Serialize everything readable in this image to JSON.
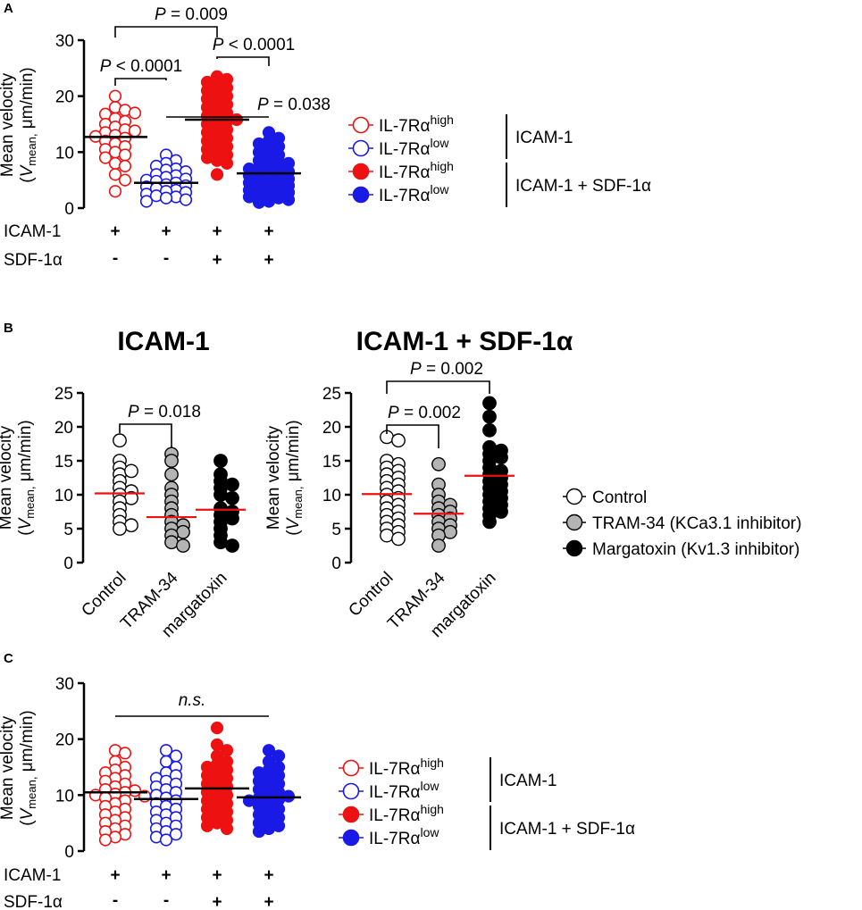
{
  "colors": {
    "red": "#ee1111",
    "blue": "#1a1ae6",
    "grey": "#b4b4b4",
    "black": "#000000",
    "mean_line_red": "#ee1111",
    "mean_line_black": "#000000"
  },
  "labels": {
    "ylabel_line1": "Mean velocity",
    "ylabel_v": "V",
    "ylabel_sub": "mean,",
    "ylabel_unit": " μm/min)",
    "ylabel_open": "("
  },
  "chart_data": [
    {
      "panel": "A",
      "type": "scatter",
      "ylim": [
        0,
        30
      ],
      "yticks": [
        "0",
        "10",
        "20",
        "30"
      ],
      "groups": [
        {
          "name": "IL-7Rα high, ICAM-1",
          "fill": "open",
          "color": "red",
          "mean": 12.7,
          "values": [
            20,
            18,
            17.5,
            16.8,
            17,
            16,
            15.5,
            15,
            14.5,
            14,
            13.8,
            13.5,
            13,
            12.8,
            12.5,
            12,
            11.5,
            11,
            10.5,
            10,
            9.5,
            9,
            8,
            7.5,
            6,
            5,
            3
          ]
        },
        {
          "name": "IL-7Rα low, ICAM-1",
          "fill": "open",
          "color": "blue",
          "mean": 4.5,
          "values": [
            9.5,
            8.5,
            8,
            7.5,
            7,
            6.8,
            6.5,
            6,
            5.8,
            5.5,
            5.2,
            5,
            4.8,
            4.5,
            4.2,
            4,
            3.8,
            3.5,
            3.2,
            3,
            2.8,
            2.5,
            2.2,
            2,
            1.8,
            1.5,
            1.2
          ]
        },
        {
          "name": "IL-7Rα high, ICAM-1 + SDF-1α",
          "fill": "filled",
          "color": "red",
          "mean": 15.8,
          "values": [
            23.5,
            23,
            22.5,
            22,
            21.5,
            21,
            20.5,
            20,
            19.5,
            19,
            18.5,
            18,
            17.5,
            17,
            16.5,
            16,
            15.8,
            15.5,
            15,
            14.5,
            14,
            13.5,
            13,
            12.5,
            12,
            11.5,
            11,
            10.5,
            10,
            9.5,
            9,
            8.5,
            8,
            6
          ]
        },
        {
          "name": "IL-7Rα low, ICAM-1 + SDF-1α",
          "fill": "filled",
          "color": "blue",
          "mean": 6.2,
          "values": [
            13.5,
            12.5,
            12,
            11.5,
            11,
            10.5,
            10,
            9.5,
            9,
            8.5,
            8.2,
            8,
            7.5,
            7.2,
            7,
            6.8,
            6.5,
            6.2,
            6,
            5.8,
            5.5,
            5.2,
            5,
            4.8,
            4.5,
            4.2,
            4,
            3.8,
            3.5,
            3.2,
            3,
            2.8,
            2.5,
            2.2,
            2,
            1.8,
            1.5,
            1.2,
            1
          ]
        }
      ],
      "brackets": [
        {
          "from": 0,
          "to": 2,
          "label_p": "P",
          "label_rest": " = 0.009",
          "left_down": 12,
          "right_down": 12
        },
        {
          "from": 0,
          "to": 1,
          "label_p": "P",
          "label_rest": " < 0.0001",
          "left_down": 6,
          "right_down": 2
        },
        {
          "from": 2,
          "to": 3,
          "label_p": "P",
          "label_rest": " < 0.0001",
          "left_down": 2,
          "right_down": 2
        },
        {
          "from": 1,
          "to": 3,
          "label_p": "P",
          "label_rest": " = 0.038",
          "left_down": 0,
          "right_down": 0
        }
      ],
      "conditions": {
        "rows": [
          "ICAM-1",
          "SDF-1α"
        ],
        "values": [
          [
            "+",
            "+",
            "+",
            "+"
          ],
          [
            "-",
            "-",
            "+",
            "+"
          ]
        ]
      },
      "legend": {
        "items": [
          {
            "prefix": "IL-7Rα",
            "sup": "high",
            "fill": "open",
            "color": "red"
          },
          {
            "prefix": "IL-7Rα",
            "sup": "low",
            "fill": "open",
            "color": "blue"
          },
          {
            "prefix": "IL-7Rα",
            "sup": "high",
            "fill": "filled",
            "color": "red"
          },
          {
            "prefix": "IL-7Rα",
            "sup": "low",
            "fill": "filled",
            "color": "blue"
          }
        ],
        "groups": [
          "ICAM-1",
          "ICAM-1 + SDF-1α"
        ]
      }
    },
    {
      "panel": "B",
      "subpanels": [
        {
          "title": "ICAM-1",
          "type": "scatter",
          "ylim": [
            0,
            25
          ],
          "yticks": [
            "0",
            "5",
            "10",
            "15",
            "20",
            "25"
          ],
          "categories": [
            "Control",
            "TRAM-34",
            "margatoxin"
          ],
          "groups": [
            {
              "name": "Control",
              "fill": "white",
              "mean": 10.2,
              "values": [
                18,
                15,
                14,
                13,
                13.5,
                12,
                11,
                10.5,
                10,
                9.5,
                9,
                8,
                7,
                6,
                5.5,
                5
              ]
            },
            {
              "name": "TRAM-34",
              "fill": "grey",
              "mean": 6.7,
              "values": [
                16,
                15,
                13,
                11,
                10,
                9,
                8,
                7,
                6,
                5.5,
                5,
                4.5,
                4,
                3,
                2.5
              ]
            },
            {
              "name": "margatoxin",
              "fill": "black",
              "mean": 7.8,
              "values": [
                15,
                13,
                12,
                11.5,
                11,
                10,
                9.5,
                8,
                7.5,
                7,
                6.5,
                6,
                5,
                4,
                3,
                2.5
              ]
            }
          ],
          "brackets": [
            {
              "from": 0,
              "to": 1,
              "label_p": "P",
              "label_rest": " = 0.018"
            }
          ]
        },
        {
          "title": "ICAM-1 + SDF-1α",
          "type": "scatter",
          "ylim": [
            0,
            25
          ],
          "yticks": [
            "0",
            "5",
            "10",
            "15",
            "20",
            "25"
          ],
          "categories": [
            "Control",
            "TRAM-34",
            "margatoxin"
          ],
          "groups": [
            {
              "name": "Control",
              "fill": "white",
              "mean": 10.1,
              "values": [
                18.5,
                18,
                15,
                14.5,
                14,
                13.5,
                13,
                12.5,
                12,
                11.5,
                11,
                10.5,
                10,
                9.5,
                9,
                8.5,
                8,
                7.5,
                7,
                6.5,
                6,
                5.5,
                5,
                4.5,
                4,
                3.5
              ]
            },
            {
              "name": "TRAM-34",
              "fill": "grey",
              "mean": 7.2,
              "values": [
                14.5,
                11.5,
                10,
                9,
                8.5,
                8,
                7.5,
                7,
                6.5,
                6,
                5.5,
                5,
                4.5,
                4,
                2.5
              ]
            },
            {
              "name": "margatoxin",
              "fill": "black",
              "mean": 12.8,
              "values": [
                23.5,
                21.5,
                19.5,
                17,
                16.5,
                16,
                15.5,
                15,
                14,
                13.5,
                13,
                12.5,
                12,
                11.5,
                11,
                10.5,
                10,
                9.5,
                9,
                8.5,
                8,
                7.5,
                7,
                6
              ]
            }
          ],
          "brackets": [
            {
              "from": 0,
              "to": 2,
              "label_p": "P",
              "label_rest": " = 0.002"
            },
            {
              "from": 0,
              "to": 1,
              "label_p": "P",
              "label_rest": " = 0.002"
            }
          ]
        }
      ],
      "legend": {
        "items": [
          {
            "label": "Control",
            "fill": "white"
          },
          {
            "label": "TRAM-34 (KCa3.1 inhibitor)",
            "fill": "grey"
          },
          {
            "label": "Margatoxin (Kv1.3 inhibitor)",
            "fill": "black"
          }
        ]
      }
    },
    {
      "panel": "C",
      "type": "scatter",
      "ylim": [
        0,
        30
      ],
      "yticks": [
        "0",
        "10",
        "20",
        "30"
      ],
      "groups": [
        {
          "name": "IL-7Rα high, ICAM-1",
          "fill": "open",
          "color": "red",
          "mean": 10.5,
          "values": [
            18,
            17.5,
            16,
            15,
            14.5,
            14,
            13.5,
            13,
            12.5,
            12,
            11.5,
            11,
            10.8,
            10.5,
            10.2,
            10,
            9.8,
            9.5,
            9,
            8.5,
            8,
            7.5,
            7,
            6.5,
            6,
            5.5,
            5,
            4.5,
            4,
            3.5,
            3,
            2.5,
            2
          ]
        },
        {
          "name": "IL-7Rα low, ICAM-1",
          "fill": "open",
          "color": "blue",
          "mean": 9.3,
          "values": [
            18,
            17,
            16,
            15,
            14,
            13.5,
            13,
            12.5,
            12,
            11.5,
            11,
            10.5,
            10,
            9.5,
            9,
            8.5,
            8,
            7.5,
            7,
            6.5,
            6,
            5.5,
            5,
            4.5,
            4,
            3.5,
            3,
            2.5,
            2
          ]
        },
        {
          "name": "IL-7Rα high, ICAM-1 + SDF-1α",
          "fill": "filled",
          "color": "red",
          "mean": 11.2,
          "values": [
            22,
            19,
            18,
            17,
            16,
            15.5,
            15,
            14.5,
            14,
            13.5,
            13,
            12.5,
            12,
            11.5,
            11,
            10.5,
            10,
            9.5,
            9,
            8.5,
            8,
            7.5,
            7,
            6.5,
            6,
            5.5,
            5,
            4.5,
            4
          ]
        },
        {
          "name": "IL-7Rα low, ICAM-1 + SDF-1α",
          "fill": "filled",
          "color": "blue",
          "mean": 9.6,
          "values": [
            18,
            17,
            16,
            15,
            14.5,
            14,
            13.5,
            13,
            12.5,
            12,
            11.5,
            11,
            10.5,
            10,
            9.8,
            9.5,
            9.2,
            9,
            8.5,
            8,
            7.5,
            7,
            6.5,
            6,
            5.5,
            5,
            4.5,
            4,
            3.5
          ]
        }
      ],
      "brackets": [
        {
          "from": 0,
          "to": 3,
          "label": "n.s.",
          "flat": true
        }
      ],
      "conditions": {
        "rows": [
          "ICAM-1",
          "SDF-1α"
        ],
        "values": [
          [
            "+",
            "+",
            "+",
            "+"
          ],
          [
            "-",
            "-",
            "+",
            "+"
          ]
        ]
      },
      "legend": {
        "items": [
          {
            "prefix": "IL-7Rα",
            "sup": "high",
            "fill": "open",
            "color": "red"
          },
          {
            "prefix": "IL-7Rα",
            "sup": "low",
            "fill": "open",
            "color": "blue"
          },
          {
            "prefix": "IL-7Rα",
            "sup": "high",
            "fill": "filled",
            "color": "red"
          },
          {
            "prefix": "IL-7Rα",
            "sup": "low",
            "fill": "filled",
            "color": "blue"
          }
        ],
        "groups": [
          "ICAM-1",
          "ICAM-1 + SDF-1α"
        ]
      }
    }
  ]
}
